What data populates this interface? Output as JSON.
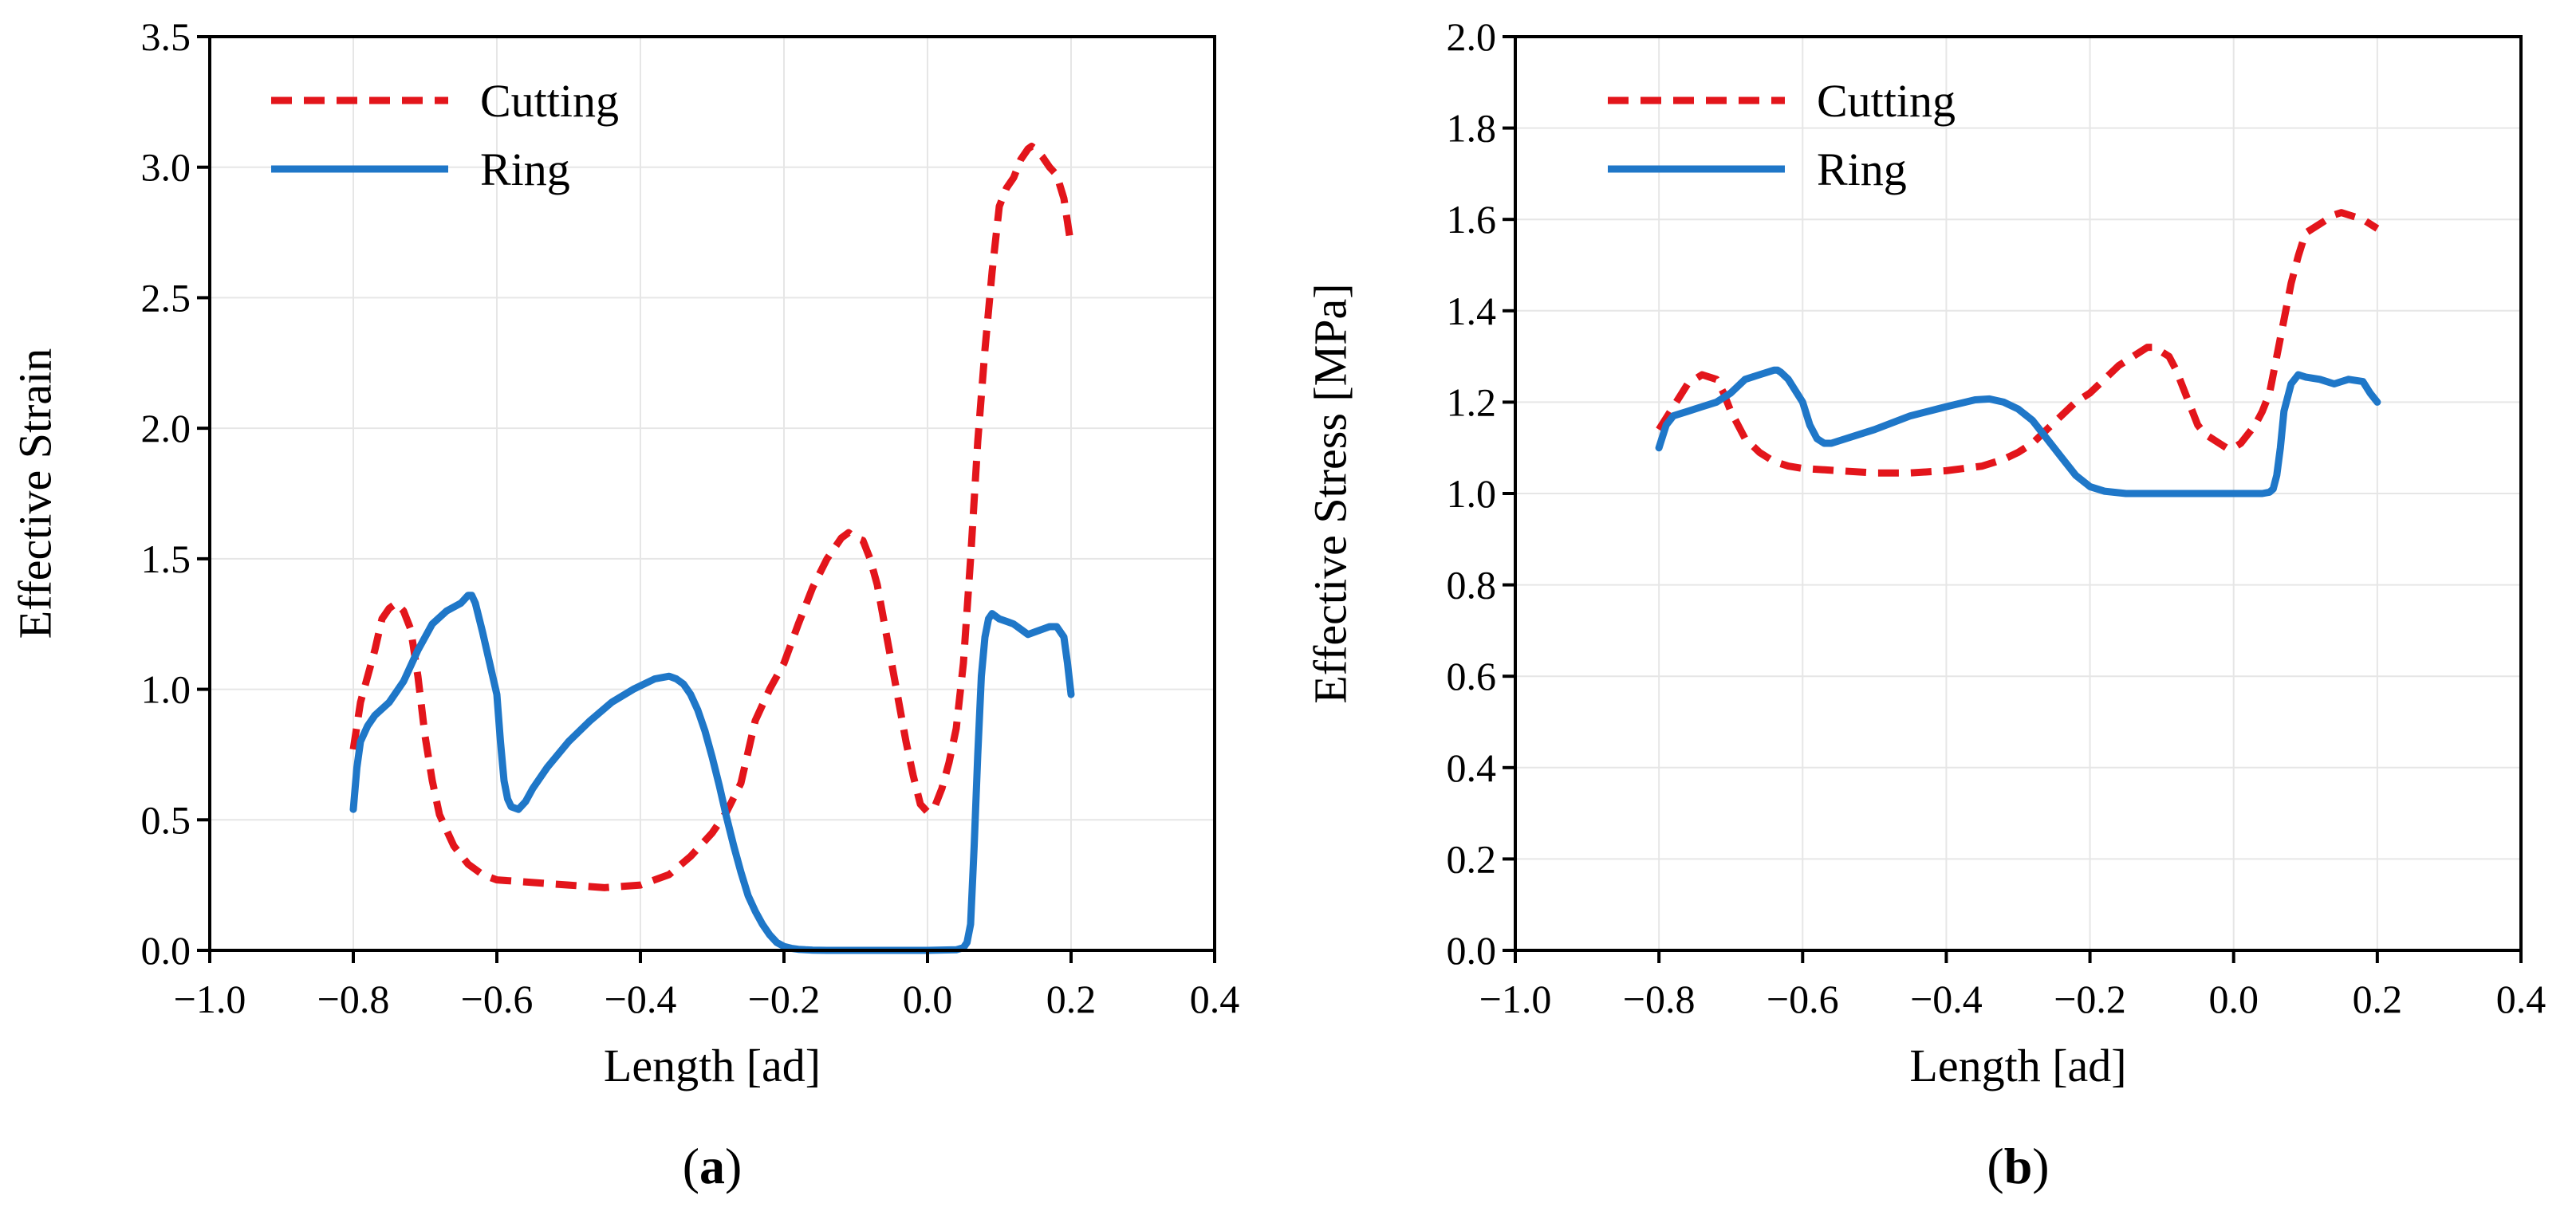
{
  "chart_data": [
    {
      "type": "line",
      "panel_label": {
        "open": "(",
        "letter": "a",
        "close": ")"
      },
      "xlabel": "Length [ad]",
      "ylabel": "Effective Strain",
      "xlim": [
        -1.0,
        0.4
      ],
      "ylim": [
        0.0,
        3.5
      ],
      "xticks": [
        -1.0,
        -0.8,
        -0.6,
        -0.4,
        -0.2,
        0.0,
        0.2,
        0.4
      ],
      "xtick_labels": [
        "−1.0",
        "−0.8",
        "−0.6",
        "−0.4",
        "−0.2",
        "0.0",
        "0.2",
        "0.4"
      ],
      "yticks": [
        0.0,
        0.5,
        1.0,
        1.5,
        2.0,
        2.5,
        3.0,
        3.5
      ],
      "ytick_labels": [
        "0.0",
        "0.5",
        "1.0",
        "1.5",
        "2.0",
        "2.5",
        "3.0",
        "3.5"
      ],
      "grid": true,
      "legend_position": "top-left",
      "series": [
        {
          "name": "Cutting",
          "style": "dashed",
          "color": "#e3151b",
          "x": [
            -0.8,
            -0.79,
            -0.77,
            -0.76,
            -0.75,
            -0.74,
            -0.73,
            -0.72,
            -0.71,
            -0.7,
            -0.69,
            -0.68,
            -0.66,
            -0.64,
            -0.62,
            -0.6,
            -0.55,
            -0.5,
            -0.45,
            -0.4,
            -0.36,
            -0.33,
            -0.3,
            -0.28,
            -0.26,
            -0.25,
            -0.24,
            -0.22,
            -0.2,
            -0.18,
            -0.16,
            -0.14,
            -0.12,
            -0.11,
            -0.1,
            -0.09,
            -0.08,
            -0.07,
            -0.06,
            -0.05,
            -0.04,
            -0.03,
            -0.02,
            -0.01,
            0.0,
            0.01,
            0.02,
            0.03,
            0.04,
            0.05,
            0.06,
            0.07,
            0.08,
            0.09,
            0.1,
            0.11,
            0.12,
            0.13,
            0.14,
            0.145,
            0.15,
            0.16,
            0.17,
            0.18,
            0.19,
            0.2
          ],
          "y": [
            0.77,
            0.95,
            1.15,
            1.27,
            1.31,
            1.33,
            1.3,
            1.23,
            1.05,
            0.82,
            0.65,
            0.52,
            0.4,
            0.33,
            0.29,
            0.27,
            0.26,
            0.25,
            0.24,
            0.25,
            0.29,
            0.36,
            0.45,
            0.53,
            0.64,
            0.76,
            0.88,
            1.0,
            1.1,
            1.25,
            1.39,
            1.5,
            1.58,
            1.6,
            1.58,
            1.57,
            1.5,
            1.4,
            1.25,
            1.1,
            0.95,
            0.8,
            0.67,
            0.56,
            0.53,
            0.55,
            0.62,
            0.72,
            0.85,
            1.1,
            1.5,
            1.95,
            2.3,
            2.6,
            2.85,
            2.92,
            2.96,
            3.03,
            3.07,
            3.08,
            3.07,
            3.04,
            3.0,
            2.97,
            2.88,
            2.7
          ]
        },
        {
          "name": "Ring",
          "style": "solid",
          "color": "#1f77c8",
          "x": [
            -0.8,
            -0.795,
            -0.79,
            -0.78,
            -0.77,
            -0.75,
            -0.73,
            -0.71,
            -0.69,
            -0.67,
            -0.65,
            -0.64,
            -0.635,
            -0.63,
            -0.62,
            -0.61,
            -0.6,
            -0.595,
            -0.59,
            -0.585,
            -0.58,
            -0.57,
            -0.56,
            -0.55,
            -0.53,
            -0.5,
            -0.47,
            -0.44,
            -0.41,
            -0.38,
            -0.36,
            -0.35,
            -0.34,
            -0.33,
            -0.32,
            -0.31,
            -0.3,
            -0.29,
            -0.28,
            -0.27,
            -0.26,
            -0.25,
            -0.24,
            -0.23,
            -0.22,
            -0.21,
            -0.2,
            -0.19,
            -0.18,
            -0.17,
            -0.16,
            -0.14,
            -0.1,
            -0.05,
            0.0,
            0.04,
            0.05,
            0.055,
            0.06,
            0.065,
            0.07,
            0.075,
            0.08,
            0.085,
            0.09,
            0.1,
            0.11,
            0.12,
            0.13,
            0.14,
            0.15,
            0.16,
            0.17,
            0.18,
            0.19,
            0.195,
            0.2
          ],
          "y": [
            0.54,
            0.7,
            0.8,
            0.86,
            0.9,
            0.95,
            1.03,
            1.15,
            1.25,
            1.3,
            1.33,
            1.36,
            1.36,
            1.33,
            1.22,
            1.1,
            0.98,
            0.8,
            0.65,
            0.58,
            0.55,
            0.54,
            0.57,
            0.62,
            0.7,
            0.8,
            0.88,
            0.95,
            1.0,
            1.04,
            1.05,
            1.04,
            1.02,
            0.98,
            0.92,
            0.84,
            0.74,
            0.63,
            0.51,
            0.4,
            0.3,
            0.21,
            0.15,
            0.1,
            0.06,
            0.03,
            0.015,
            0.008,
            0.004,
            0.002,
            0.001,
            0.0,
            0.0,
            0.0,
            0.0,
            0.002,
            0.01,
            0.03,
            0.1,
            0.4,
            0.75,
            1.05,
            1.2,
            1.27,
            1.29,
            1.27,
            1.26,
            1.25,
            1.23,
            1.21,
            1.22,
            1.23,
            1.24,
            1.24,
            1.2,
            1.1,
            0.98
          ]
        }
      ]
    },
    {
      "type": "line",
      "panel_label": {
        "open": "(",
        "letter": "b",
        "close": ")"
      },
      "xlabel": "Length [ad]",
      "ylabel": "Effective Stress [MPa]",
      "xlim": [
        -1.0,
        0.4
      ],
      "ylim": [
        0.0,
        2.0
      ],
      "xticks": [
        -1.0,
        -0.8,
        -0.6,
        -0.4,
        -0.2,
        0.0,
        0.2,
        0.4
      ],
      "xtick_labels": [
        "−1.0",
        "−0.8",
        "−0.6",
        "−0.4",
        "−0.2",
        "0.0",
        "0.2",
        "0.4"
      ],
      "yticks": [
        0.0,
        0.2,
        0.4,
        0.6,
        0.8,
        1.0,
        1.2,
        1.4,
        1.6,
        1.8,
        2.0
      ],
      "ytick_labels": [
        "0.0",
        "0.2",
        "0.4",
        "0.6",
        "0.8",
        "1.0",
        "1.2",
        "1.4",
        "1.6",
        "1.8",
        "2.0"
      ],
      "grid": true,
      "legend_position": "top-left",
      "series": [
        {
          "name": "Cutting",
          "style": "dashed",
          "color": "#e3151b",
          "x": [
            -0.8,
            -0.78,
            -0.76,
            -0.74,
            -0.72,
            -0.71,
            -0.7,
            -0.69,
            -0.68,
            -0.66,
            -0.64,
            -0.62,
            -0.6,
            -0.55,
            -0.5,
            -0.45,
            -0.4,
            -0.35,
            -0.32,
            -0.3,
            -0.28,
            -0.26,
            -0.24,
            -0.22,
            -0.2,
            -0.18,
            -0.16,
            -0.14,
            -0.12,
            -0.11,
            -0.1,
            -0.09,
            -0.08,
            -0.07,
            -0.06,
            -0.05,
            -0.04,
            -0.03,
            -0.02,
            -0.01,
            0.0,
            0.01,
            0.02,
            0.03,
            0.04,
            0.05,
            0.06,
            0.07,
            0.08,
            0.09,
            0.1,
            0.12,
            0.14,
            0.15,
            0.16,
            0.18,
            0.2
          ],
          "y": [
            1.14,
            1.19,
            1.24,
            1.26,
            1.25,
            1.22,
            1.18,
            1.15,
            1.12,
            1.09,
            1.07,
            1.06,
            1.055,
            1.05,
            1.045,
            1.045,
            1.05,
            1.06,
            1.075,
            1.09,
            1.11,
            1.14,
            1.17,
            1.2,
            1.22,
            1.25,
            1.28,
            1.3,
            1.32,
            1.32,
            1.31,
            1.3,
            1.27,
            1.23,
            1.19,
            1.15,
            1.13,
            1.12,
            1.11,
            1.1,
            1.1,
            1.11,
            1.13,
            1.15,
            1.18,
            1.22,
            1.3,
            1.38,
            1.46,
            1.52,
            1.57,
            1.59,
            1.61,
            1.615,
            1.61,
            1.6,
            1.58
          ]
        },
        {
          "name": "Ring",
          "style": "solid",
          "color": "#1f77c8",
          "x": [
            -0.8,
            -0.79,
            -0.78,
            -0.76,
            -0.74,
            -0.72,
            -0.7,
            -0.68,
            -0.66,
            -0.64,
            -0.635,
            -0.63,
            -0.62,
            -0.6,
            -0.59,
            -0.58,
            -0.57,
            -0.56,
            -0.55,
            -0.5,
            -0.45,
            -0.4,
            -0.36,
            -0.34,
            -0.32,
            -0.3,
            -0.28,
            -0.26,
            -0.24,
            -0.22,
            -0.2,
            -0.18,
            -0.15,
            -0.1,
            -0.05,
            0.0,
            0.04,
            0.05,
            0.055,
            0.06,
            0.065,
            0.07,
            0.08,
            0.09,
            0.1,
            0.12,
            0.14,
            0.15,
            0.16,
            0.18,
            0.19,
            0.2
          ],
          "y": [
            1.1,
            1.15,
            1.17,
            1.18,
            1.19,
            1.2,
            1.22,
            1.25,
            1.26,
            1.27,
            1.27,
            1.265,
            1.25,
            1.2,
            1.15,
            1.12,
            1.11,
            1.11,
            1.115,
            1.14,
            1.17,
            1.19,
            1.205,
            1.207,
            1.2,
            1.185,
            1.16,
            1.12,
            1.08,
            1.04,
            1.015,
            1.005,
            1.0,
            1.0,
            1.0,
            1.0,
            1.0,
            1.003,
            1.01,
            1.04,
            1.1,
            1.18,
            1.24,
            1.26,
            1.255,
            1.25,
            1.24,
            1.245,
            1.25,
            1.245,
            1.22,
            1.2
          ]
        }
      ]
    }
  ]
}
